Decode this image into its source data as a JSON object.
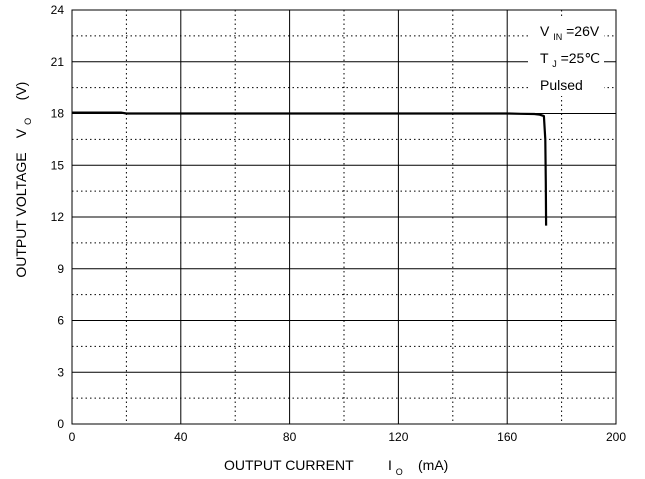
{
  "chart_data": {
    "type": "line",
    "x_ticks": [
      "0",
      "40",
      "80",
      "120",
      "160",
      "200"
    ],
    "y_ticks": [
      "0",
      "3",
      "6",
      "9",
      "12",
      "15",
      "18",
      "21",
      "24"
    ],
    "xlim": [
      0,
      200
    ],
    "ylim": [
      0,
      24
    ],
    "x_major_step": 40,
    "x_minor_step": 20,
    "y_major_step": 3,
    "y_minor_step": 1.5,
    "grid": true,
    "xlabel": {
      "main": "OUTPUT CURRENT",
      "symbol": "I",
      "subscript": "O",
      "unit": "(mA)"
    },
    "ylabel": {
      "main": "OUTPUT VOLTAGE",
      "symbol": "V",
      "subscript": "O",
      "unit": "(V)"
    },
    "annotations": {
      "vin_symbol": "V",
      "vin_subscript": "IN",
      "vin_value": "=26V",
      "tj_symbol": "T",
      "tj_subscript": "J",
      "tj_value": "=25℃",
      "pulsed": "Pulsed"
    },
    "series": [
      {
        "color": "#000000",
        "points": [
          [
            0,
            18.05
          ],
          [
            10,
            18.05
          ],
          [
            18,
            18.05
          ],
          [
            20,
            18.0
          ],
          [
            40,
            18.0
          ],
          [
            80,
            18.0
          ],
          [
            120,
            18.0
          ],
          [
            160,
            18.0
          ],
          [
            165,
            17.98
          ],
          [
            170,
            17.97
          ],
          [
            172,
            17.93
          ],
          [
            173.5,
            17.85
          ],
          [
            174,
            16.5
          ],
          [
            174.2,
            14.0
          ],
          [
            174.3,
            11.5
          ]
        ]
      }
    ]
  }
}
